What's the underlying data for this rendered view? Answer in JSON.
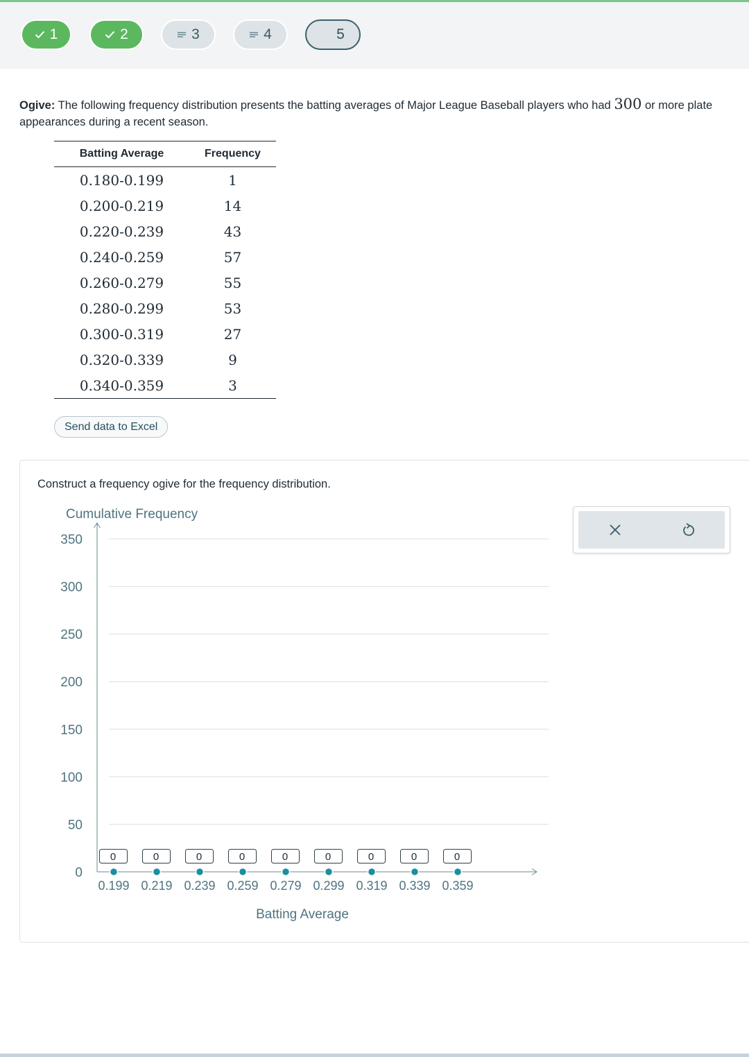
{
  "nav": {
    "steps": [
      {
        "label": "1",
        "state": "done",
        "icon": "check-icon"
      },
      {
        "label": "2",
        "state": "done",
        "icon": "check-icon"
      },
      {
        "label": "3",
        "state": "pending",
        "icon": "lines-icon"
      },
      {
        "label": "4",
        "state": "pending",
        "icon": "lines-icon"
      },
      {
        "label": "5",
        "state": "current",
        "icon": ""
      }
    ]
  },
  "question": {
    "label": "Ogive:",
    "text_before": " The following frequency distribution presents the batting averages of Major League Baseball players who had ",
    "number": "300",
    "text_after": " or more plate appearances during a recent season."
  },
  "table": {
    "headers": [
      "Batting Average",
      "Frequency"
    ],
    "rows": [
      {
        "range": "0.180-0.199",
        "freq": "1"
      },
      {
        "range": "0.200-0.219",
        "freq": "14"
      },
      {
        "range": "0.220-0.239",
        "freq": "43"
      },
      {
        "range": "0.240-0.259",
        "freq": "57"
      },
      {
        "range": "0.260-0.279",
        "freq": "55"
      },
      {
        "range": "0.280-0.299",
        "freq": "53"
      },
      {
        "range": "0.300-0.319",
        "freq": "27"
      },
      {
        "range": "0.320-0.339",
        "freq": "9"
      },
      {
        "range": "0.340-0.359",
        "freq": "3"
      }
    ]
  },
  "excel_button": "Send data to Excel",
  "instruction": "Construct a frequency ogive for the frequency distribution.",
  "tools": {
    "clear_icon": "close-icon",
    "reset_icon": "undo-icon"
  },
  "colors": {
    "accent": "#1a8fa0",
    "done_green": "#5cb85f",
    "axis_label": "#4f7480"
  },
  "chart_data": {
    "type": "line",
    "ylabel": "Cumulative Frequency",
    "xlabel": "Batting Average",
    "ylim": [
      0,
      350
    ],
    "yticks": [
      0,
      50,
      100,
      150,
      200,
      250,
      300,
      350
    ],
    "grid": true,
    "x": [
      "0.199",
      "0.219",
      "0.239",
      "0.259",
      "0.279",
      "0.299",
      "0.319",
      "0.339",
      "0.359"
    ],
    "values": [
      0,
      0,
      0,
      0,
      0,
      0,
      0,
      0,
      0
    ]
  }
}
